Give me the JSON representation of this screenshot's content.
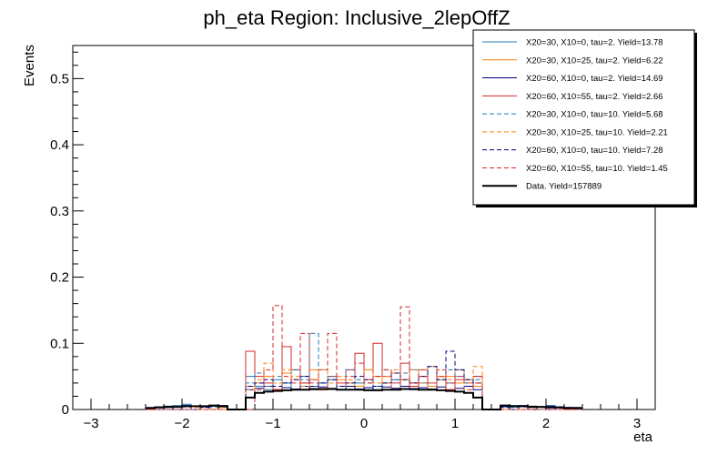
{
  "chart_data": {
    "type": "histogram",
    "title": "ph_eta Region: Inclusive_2lepOffZ",
    "xlabel": "eta",
    "ylabel": "Events",
    "xlim": [
      -3.2,
      3.2
    ],
    "ylim": [
      0,
      0.55
    ],
    "x_ticks": [
      -3,
      -2,
      -1,
      0,
      1,
      2,
      3
    ],
    "x_tick_labels": [
      "−3",
      "−2",
      "−1",
      "0",
      "1",
      "2",
      "3"
    ],
    "y_ticks": [
      0,
      0.1,
      0.2,
      0.3,
      0.4,
      0.5
    ],
    "y_tick_labels": [
      "0",
      "0.1",
      "0.2",
      "0.3",
      "0.4",
      "0.5"
    ],
    "bin_edges": [
      -2.4,
      -2.3,
      -2.2,
      -2.1,
      -2.0,
      -1.9,
      -1.8,
      -1.7,
      -1.6,
      -1.5,
      -1.4,
      -1.3,
      -1.2,
      -1.1,
      -1.0,
      -0.9,
      -0.8,
      -0.7,
      -0.6,
      -0.5,
      -0.4,
      -0.3,
      -0.2,
      -0.1,
      0.0,
      0.1,
      0.2,
      0.3,
      0.4,
      0.5,
      0.6,
      0.7,
      0.8,
      0.9,
      1.0,
      1.1,
      1.2,
      1.3,
      1.4,
      1.5,
      1.6,
      1.7,
      1.8,
      1.9,
      2.0,
      2.1,
      2.2,
      2.3,
      2.4
    ],
    "series": [
      {
        "name": "X20=30, X10=0, tau=2. Yield=13.78",
        "color": "#1f77b4",
        "dashed": false,
        "values": [
          0.002,
          0.004,
          0.003,
          0.006,
          0.008,
          0.005,
          0.004,
          0.006,
          0.005,
          0,
          0,
          0.05,
          0.035,
          0.03,
          0.045,
          0.04,
          0.03,
          0.05,
          0.035,
          0.04,
          0.045,
          0.03,
          0.035,
          0.04,
          0.03,
          0.035,
          0.04,
          0.045,
          0.035,
          0.06,
          0.04,
          0.035,
          0.05,
          0.04,
          0.06,
          0.045,
          0.05,
          0,
          0,
          0.004,
          0.006,
          0.005,
          0.003,
          0.004,
          0.006,
          0.004,
          0.003,
          0.002
        ]
      },
      {
        "name": "X20=30, X10=25, tau=2. Yield=6.22",
        "color": "#ff7f0e",
        "dashed": false,
        "values": [
          0,
          0,
          0.003,
          0,
          0.005,
          0,
          0.004,
          0,
          0.003,
          0,
          0,
          0.035,
          0.04,
          0.05,
          0.03,
          0.055,
          0.045,
          0.04,
          0.06,
          0.03,
          0.05,
          0.045,
          0.04,
          0.035,
          0.06,
          0.05,
          0.04,
          0.055,
          0.045,
          0.04,
          0.05,
          0.035,
          0.045,
          0.05,
          0.04,
          0.045,
          0.035,
          0,
          0,
          0,
          0.004,
          0,
          0.003,
          0,
          0.004,
          0,
          0.002,
          0
        ]
      },
      {
        "name": "X20=60, X10=0, tau=2. Yield=14.69",
        "color": "#000080",
        "dashed": false,
        "values": [
          0.003,
          0.004,
          0.005,
          0.004,
          0.006,
          0.005,
          0.004,
          0.005,
          0.006,
          0,
          0,
          0.03,
          0.032,
          0.035,
          0.03,
          0.033,
          0.031,
          0.035,
          0.03,
          0.034,
          0.032,
          0.03,
          0.035,
          0.031,
          0.033,
          0.03,
          0.034,
          0.032,
          0.035,
          0.03,
          0.033,
          0.031,
          0.034,
          0.03,
          0.032,
          0.035,
          0.03,
          0,
          0,
          0.005,
          0.004,
          0.006,
          0.005,
          0.004,
          0.005,
          0.004,
          0.003,
          0.003
        ]
      },
      {
        "name": "X20=60, X10=55, tau=2. Yield=2.66",
        "color": "#d62728",
        "dashed": false,
        "values": [
          0,
          0,
          0,
          0,
          0.005,
          0,
          0,
          0,
          0,
          0,
          0,
          0.088,
          0.05,
          0.04,
          0.03,
          0.095,
          0.06,
          0.04,
          0.045,
          0.03,
          0.05,
          0.04,
          0.06,
          0.085,
          0.045,
          0.1,
          0.05,
          0.04,
          0.07,
          0.035,
          0.06,
          0.04,
          0.05,
          0.03,
          0.045,
          0.04,
          0.05,
          0,
          0,
          0,
          0,
          0,
          0.004,
          0,
          0,
          0,
          0,
          0
        ]
      },
      {
        "name": "X20=30, X10=0, tau=10. Yield=5.68",
        "color": "#1f77b4",
        "dashed": true,
        "values": [
          0,
          0.003,
          0,
          0.004,
          0,
          0.005,
          0,
          0.003,
          0,
          0,
          0,
          0.04,
          0.055,
          0.035,
          0.05,
          0.04,
          0.06,
          0.045,
          0.115,
          0.04,
          0.05,
          0.035,
          0.06,
          0.045,
          0.04,
          0.05,
          0.06,
          0.045,
          0.055,
          0.04,
          0.05,
          0.065,
          0.045,
          0.06,
          0.05,
          0.04,
          0.045,
          0,
          0,
          0,
          0.003,
          0,
          0.004,
          0,
          0.003,
          0,
          0.002,
          0
        ]
      },
      {
        "name": "X20=30, X10=25, tau=10. Yield=2.21",
        "color": "#ff7f0e",
        "dashed": true,
        "values": [
          0,
          0,
          0,
          0,
          0,
          0.003,
          0,
          0,
          0,
          0,
          0,
          0.03,
          0.045,
          0.07,
          0.04,
          0.06,
          0.05,
          0.035,
          0.045,
          0.06,
          0.04,
          0.05,
          0.045,
          0.035,
          0.06,
          0.04,
          0.05,
          0.06,
          0.045,
          0.06,
          0.04,
          0.065,
          0.05,
          0.045,
          0.06,
          0.04,
          0.065,
          0,
          0,
          0,
          0,
          0,
          0.003,
          0,
          0,
          0,
          0,
          0
        ]
      },
      {
        "name": "X20=60, X10=0, tau=10. Yield=7.28",
        "color": "#000080",
        "dashed": true,
        "values": [
          0.002,
          0,
          0.003,
          0,
          0.004,
          0,
          0.003,
          0,
          0.004,
          0,
          0,
          0.035,
          0.04,
          0.045,
          0.035,
          0.04,
          0.045,
          0.05,
          0.035,
          0.04,
          0.045,
          0.035,
          0.04,
          0.05,
          0.045,
          0.035,
          0.04,
          0.055,
          0.045,
          0.04,
          0.05,
          0.065,
          0.045,
          0.088,
          0.06,
          0.045,
          0.04,
          0,
          0,
          0.003,
          0,
          0.004,
          0,
          0.003,
          0,
          0.002,
          0,
          0
        ]
      },
      {
        "name": "X20=60, X10=55, tau=10. Yield=1.45",
        "color": "#d62728",
        "dashed": true,
        "values": [
          0,
          0,
          0,
          0,
          0,
          0,
          0,
          0,
          0,
          0,
          0,
          0,
          0.03,
          0.06,
          0.157,
          0.05,
          0.04,
          0.115,
          0.04,
          0.06,
          0.115,
          0.03,
          0.05,
          0.07,
          0.04,
          0.05,
          0.06,
          0.03,
          0.155,
          0.04,
          0.05,
          0.03,
          0.06,
          0.04,
          0.05,
          0.03,
          0.04,
          0,
          0,
          0,
          0,
          0,
          0,
          0,
          0,
          0,
          0,
          0
        ]
      },
      {
        "name": "Data. Yield=157889",
        "color": "#000000",
        "dashed": false,
        "thick": true,
        "values": [
          0.002,
          0.003,
          0.004,
          0.004,
          0.005,
          0.005,
          0.005,
          0.006,
          0.005,
          0,
          0,
          0.018,
          0.025,
          0.027,
          0.028,
          0.029,
          0.03,
          0.03,
          0.031,
          0.031,
          0.031,
          0.03,
          0.03,
          0.03,
          0.029,
          0.029,
          0.03,
          0.03,
          0.031,
          0.031,
          0.03,
          0.03,
          0.029,
          0.028,
          0.027,
          0.025,
          0.018,
          0,
          0,
          0.006,
          0.005,
          0.005,
          0.004,
          0.004,
          0.003,
          0.003,
          0.002,
          0.002
        ]
      }
    ]
  }
}
